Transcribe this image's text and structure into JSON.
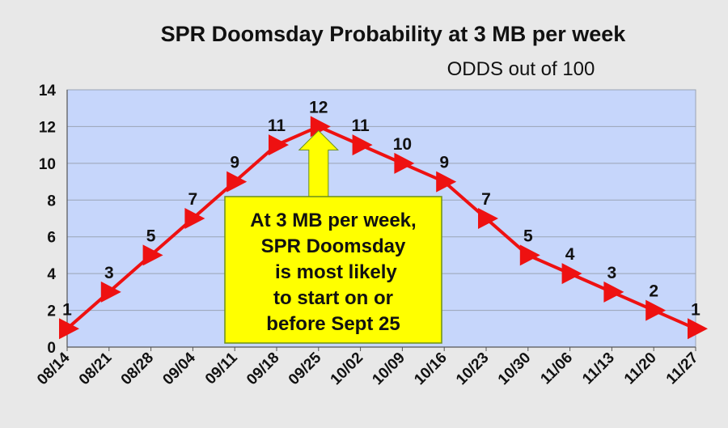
{
  "colors": {
    "page_background": "#e8e8e8",
    "plot_background": "#c6d6fb",
    "line": "#ee1111",
    "grid": "#9aa4b5",
    "callout_fill": "#ffff00",
    "callout_border": "#6b8f1a"
  },
  "marker": "triangle-right",
  "callout": {
    "lines": [
      "At 3 MB per week,",
      "SPR Doomsday",
      " is most likely",
      "to start on or",
      "before Sept 25"
    ],
    "arrow_to": "09/25"
  },
  "chart_data": {
    "type": "line",
    "title": "SPR Doomsday Probability at 3 MB per week",
    "subtitle": "ODDS out of 100",
    "xlabel": "",
    "ylabel": "",
    "categories": [
      "08/14",
      "08/21",
      "08/28",
      "09/04",
      "09/11",
      "09/18",
      "09/25",
      "10/02",
      "10/09",
      "10/16",
      "10/23",
      "10/30",
      "11/06",
      "11/13",
      "11/20",
      "11/27"
    ],
    "series": [
      {
        "values": [
          1,
          3,
          5,
          7,
          9,
          11,
          12,
          11,
          10,
          9,
          7,
          5,
          4,
          3,
          2,
          1
        ]
      }
    ],
    "data_labels": [
      "1",
      "3",
      "5",
      "7",
      "9",
      "11",
      "12",
      "11",
      "10",
      "9",
      "7",
      "5",
      "4",
      "3",
      "2",
      "1"
    ],
    "y_ticks": [
      "0",
      "2",
      "4",
      "6",
      "8",
      "10",
      "12",
      "14"
    ],
    "ylim": [
      0,
      14
    ],
    "grid": true,
    "legend": "none"
  }
}
